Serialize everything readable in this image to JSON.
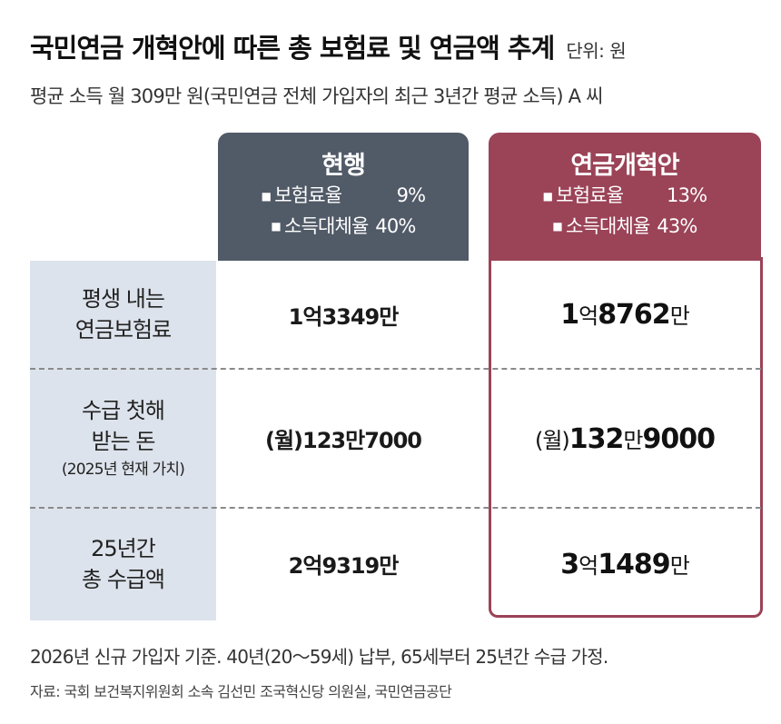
{
  "title": "국민연금 개혁안에 따른 총 보험료 및 연금액 추계",
  "unit": "단위: 원",
  "subtitle": "평균 소득 월 309만 원(국민연금 전체 가입자의 최근 3년간 평균 소득) A 씨",
  "bullet_icon": "■",
  "columns": {
    "current": {
      "title": "현행",
      "rate1_label": "보험료율",
      "rate1_value": "9%",
      "rate2_label": "소득대체율",
      "rate2_value": "40%"
    },
    "reform": {
      "title": "연금개혁안",
      "rate1_label": "보험료율",
      "rate1_value": "13%",
      "rate2_label": "소득대체율",
      "rate2_value": "43%"
    }
  },
  "rows": [
    {
      "label_line1": "평생 내는",
      "label_line2": "연금보험료",
      "current": "1억3349만",
      "reform_a": "1",
      "reform_unit_a": "억",
      "reform_b": "8762",
      "reform_unit_b": "만"
    },
    {
      "label_line1": "수급 첫해",
      "label_line2": "받는 돈",
      "label_note": "(2025년 현재 가치)",
      "current": "(월)123만7000",
      "reform_prefix": "(월)",
      "reform_a": "132",
      "reform_unit_a": "만",
      "reform_b": "9000"
    },
    {
      "label_line1": "25년간",
      "label_line2": "총 수급액",
      "current": "2억9319만",
      "reform_a": "3",
      "reform_unit_a": "억",
      "reform_b": "1489",
      "reform_unit_b": "만"
    }
  ],
  "note": "2026년 신규 가입자 기준. 40년(20～59세) 납부, 65세부터 25년간 수급 가정.",
  "source": "자료: 국회 보건복지위원회 소속 김선민 조국혁신당 의원실, 국민연금공단",
  "colors": {
    "current_header": "#515a67",
    "reform_accent": "#9b4357",
    "label_bg": "#dde3ec"
  }
}
